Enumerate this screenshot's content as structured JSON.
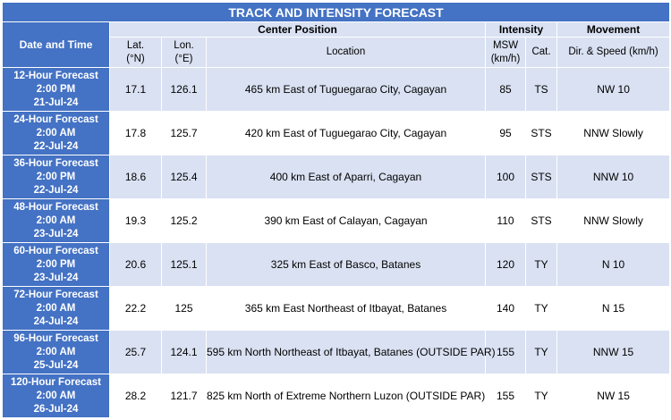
{
  "title": "TRACK AND INTENSITY FORECAST",
  "headers": {
    "date_time": "Date and Time",
    "center_position": "Center Position",
    "intensity": "Intensity",
    "movement": "Movement",
    "lat_line1": "Lat.",
    "lat_line2": "(°N)",
    "lon_line1": "Lon.",
    "lon_line2": "(°E)",
    "location": "Location",
    "msw_line1": "MSW",
    "msw_line2": "(km/h)",
    "cat": "Cat.",
    "dir_speed": "Dir. & Speed (km/h)"
  },
  "rows": [
    {
      "forecast": "12-Hour Forecast",
      "time": "2:00 PM",
      "date": "21-Jul-24",
      "lat": "17.1",
      "lon": "126.1",
      "location": "465 km East of Tuguegarao City, Cagayan",
      "msw": "85",
      "cat": "TS",
      "movement": "NW 10"
    },
    {
      "forecast": "24-Hour Forecast",
      "time": "2:00 AM",
      "date": "22-Jul-24",
      "lat": "17.8",
      "lon": "125.7",
      "location": "420 km East of Tuguegarao City, Cagayan",
      "msw": "95",
      "cat": "STS",
      "movement": "NNW Slowly"
    },
    {
      "forecast": "36-Hour Forecast",
      "time": "2:00 PM",
      "date": "22-Jul-24",
      "lat": "18.6",
      "lon": "125.4",
      "location": "400 km East of Aparri, Cagayan",
      "msw": "100",
      "cat": "STS",
      "movement": "NNW 10"
    },
    {
      "forecast": "48-Hour Forecast",
      "time": "2:00 AM",
      "date": "23-Jul-24",
      "lat": "19.3",
      "lon": "125.2",
      "location": "390 km East of Calayan, Cagayan",
      "msw": "110",
      "cat": "STS",
      "movement": "NNW Slowly"
    },
    {
      "forecast": "60-Hour Forecast",
      "time": "2:00 PM",
      "date": "23-Jul-24",
      "lat": "20.6",
      "lon": "125.1",
      "location": "325 km East of Basco, Batanes",
      "msw": "120",
      "cat": "TY",
      "movement": "N 10"
    },
    {
      "forecast": "72-Hour Forecast",
      "time": "2:00 AM",
      "date": "24-Jul-24",
      "lat": "22.2",
      "lon": "125",
      "location": "365 km East Northeast of Itbayat, Batanes",
      "msw": "140",
      "cat": "TY",
      "movement": "N 15"
    },
    {
      "forecast": "96-Hour Forecast",
      "time": "2:00 AM",
      "date": "25-Jul-24",
      "lat": "25.7",
      "lon": "124.1",
      "location": "595 km North Northeast of Itbayat, Batanes (OUTSIDE PAR)",
      "msw": "155",
      "cat": "TY",
      "movement": "NNW 15"
    },
    {
      "forecast": "120-Hour Forecast",
      "time": "2:00 AM",
      "date": "26-Jul-24",
      "lat": "28.2",
      "lon": "121.7",
      "location": "825 km North of Extreme Northern Luzon (OUTSIDE PAR)",
      "msw": "155",
      "cat": "TY",
      "movement": "NW 15"
    }
  ]
}
